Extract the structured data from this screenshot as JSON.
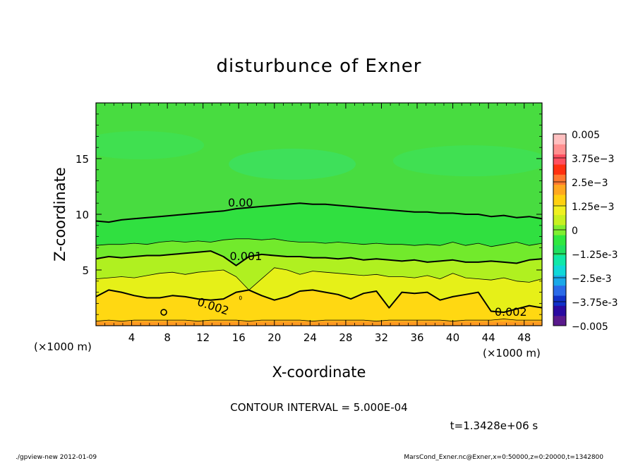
{
  "chart_data": {
    "type": "contour",
    "title": "disturbunce of Exner",
    "xlabel": "X-coordinate",
    "ylabel": "Z-coordinate",
    "x_unit": "(×1000 m)",
    "z_unit": "(×1000 m)",
    "xlim": [
      0,
      50
    ],
    "ylim": [
      0,
      20
    ],
    "x_ticks": [
      4,
      8,
      12,
      16,
      20,
      24,
      28,
      32,
      36,
      40,
      44,
      48
    ],
    "y_ticks": [
      5,
      10,
      15
    ],
    "contour_interval": "CONTOUR INTERVAL = 5.000E-04",
    "time_label": "t=1.3428e+06 s",
    "contour_labels": [
      "0.00",
      "0.001",
      "0.002",
      "0.002"
    ],
    "colorbar": {
      "range": [
        -0.005,
        0.005
      ],
      "tick_labels": [
        "0.005",
        "3.75e-3",
        "2.5e-3",
        "1.25e-3",
        "0",
        "-1.25e-3",
        "-2.5e-3",
        "-3.75e-3",
        "-0.005"
      ],
      "colors": [
        "#5a1a8c",
        "#2a0aa0",
        "#1030c8",
        "#2a6ae8",
        "#1aa8e8",
        "#10d8d8",
        "#10e8a8",
        "#20e060",
        "#30e840",
        "#80ee30",
        "#c8f020",
        "#f0f020",
        "#ffd010",
        "#ffa820",
        "#ff7830",
        "#ff3010",
        "#ff5060",
        "#ff9090",
        "#ffc0c0"
      ]
    },
    "contours": [
      {
        "level": 0.0,
        "weight": "bold",
        "z": [
          9.4,
          9.3,
          9.5,
          9.6,
          9.7,
          9.8,
          9.9,
          10.0,
          10.1,
          10.2,
          10.3,
          10.5,
          10.6,
          10.7,
          10.8,
          10.9,
          11.0,
          10.9,
          10.9,
          10.8,
          10.7,
          10.6,
          10.5,
          10.4,
          10.3,
          10.2,
          10.2,
          10.1,
          10.1,
          10.0,
          10.0,
          9.8,
          9.9,
          9.7,
          9.8,
          9.6
        ]
      },
      {
        "level": 0.0005,
        "weight": "thin",
        "z": [
          7.2,
          7.3,
          7.3,
          7.4,
          7.3,
          7.5,
          7.6,
          7.5,
          7.6,
          7.5,
          7.7,
          7.8,
          7.8,
          7.7,
          7.8,
          7.6,
          7.5,
          7.5,
          7.4,
          7.5,
          7.4,
          7.3,
          7.4,
          7.3,
          7.3,
          7.2,
          7.3,
          7.2,
          7.5,
          7.2,
          7.4,
          7.1,
          7.3,
          7.5,
          7.2,
          7.4
        ]
      },
      {
        "level": 0.001,
        "weight": "bold",
        "z": [
          6.0,
          6.2,
          6.1,
          6.2,
          6.3,
          6.3,
          6.4,
          6.5,
          6.6,
          6.7,
          6.2,
          5.4,
          6.2,
          6.4,
          6.3,
          6.2,
          6.2,
          6.1,
          6.1,
          6.0,
          6.1,
          5.9,
          6.0,
          5.9,
          5.8,
          5.9,
          5.7,
          5.8,
          5.9,
          5.7,
          5.7,
          5.8,
          5.7,
          5.6,
          5.9,
          6.0
        ]
      },
      {
        "level": 0.0015,
        "weight": "thin",
        "z": [
          4.2,
          4.3,
          4.4,
          4.3,
          4.5,
          4.7,
          4.8,
          4.6,
          4.8,
          4.9,
          5.0,
          4.4,
          3.2,
          4.2,
          5.2,
          5.0,
          4.6,
          4.9,
          4.8,
          4.7,
          4.6,
          4.5,
          4.6,
          4.4,
          4.4,
          4.3,
          4.5,
          4.2,
          4.7,
          4.3,
          4.2,
          4.1,
          4.3,
          4.0,
          3.9,
          4.2
        ]
      },
      {
        "level": 0.002,
        "weight": "bold",
        "z": [
          2.6,
          3.2,
          3.0,
          2.7,
          2.5,
          2.5,
          2.7,
          2.6,
          2.4,
          2.3,
          2.4,
          3.0,
          3.2,
          2.7,
          2.3,
          2.6,
          3.1,
          3.2,
          3.0,
          2.8,
          2.4,
          2.9,
          3.1,
          1.6,
          3.0,
          2.9,
          3.0,
          2.3,
          2.6,
          2.8,
          3.0,
          1.3,
          1.2,
          1.5,
          1.8,
          1.6
        ]
      },
      {
        "level": 0.0025,
        "weight": "thin",
        "z": [
          0.4,
          0.5,
          0.4,
          0.5,
          0.5,
          0.5,
          0.5,
          0.5,
          0.4,
          0.5,
          0.5,
          0.5,
          0.4,
          0.5,
          0.5,
          0.5,
          0.5,
          0.4,
          0.5,
          0.5,
          0.5,
          0.5,
          0.4,
          0.5,
          0.5,
          0.5,
          0.5,
          0.5,
          0.4,
          0.5,
          0.5,
          0.5,
          0.6,
          0.5,
          0.5,
          0.5
        ]
      }
    ]
  },
  "footer": {
    "left": "./gpview-new   2012-01-09",
    "right": "MarsCond_Exner.nc@Exner,x=0:50000,z=0:20000,t=1342800"
  }
}
